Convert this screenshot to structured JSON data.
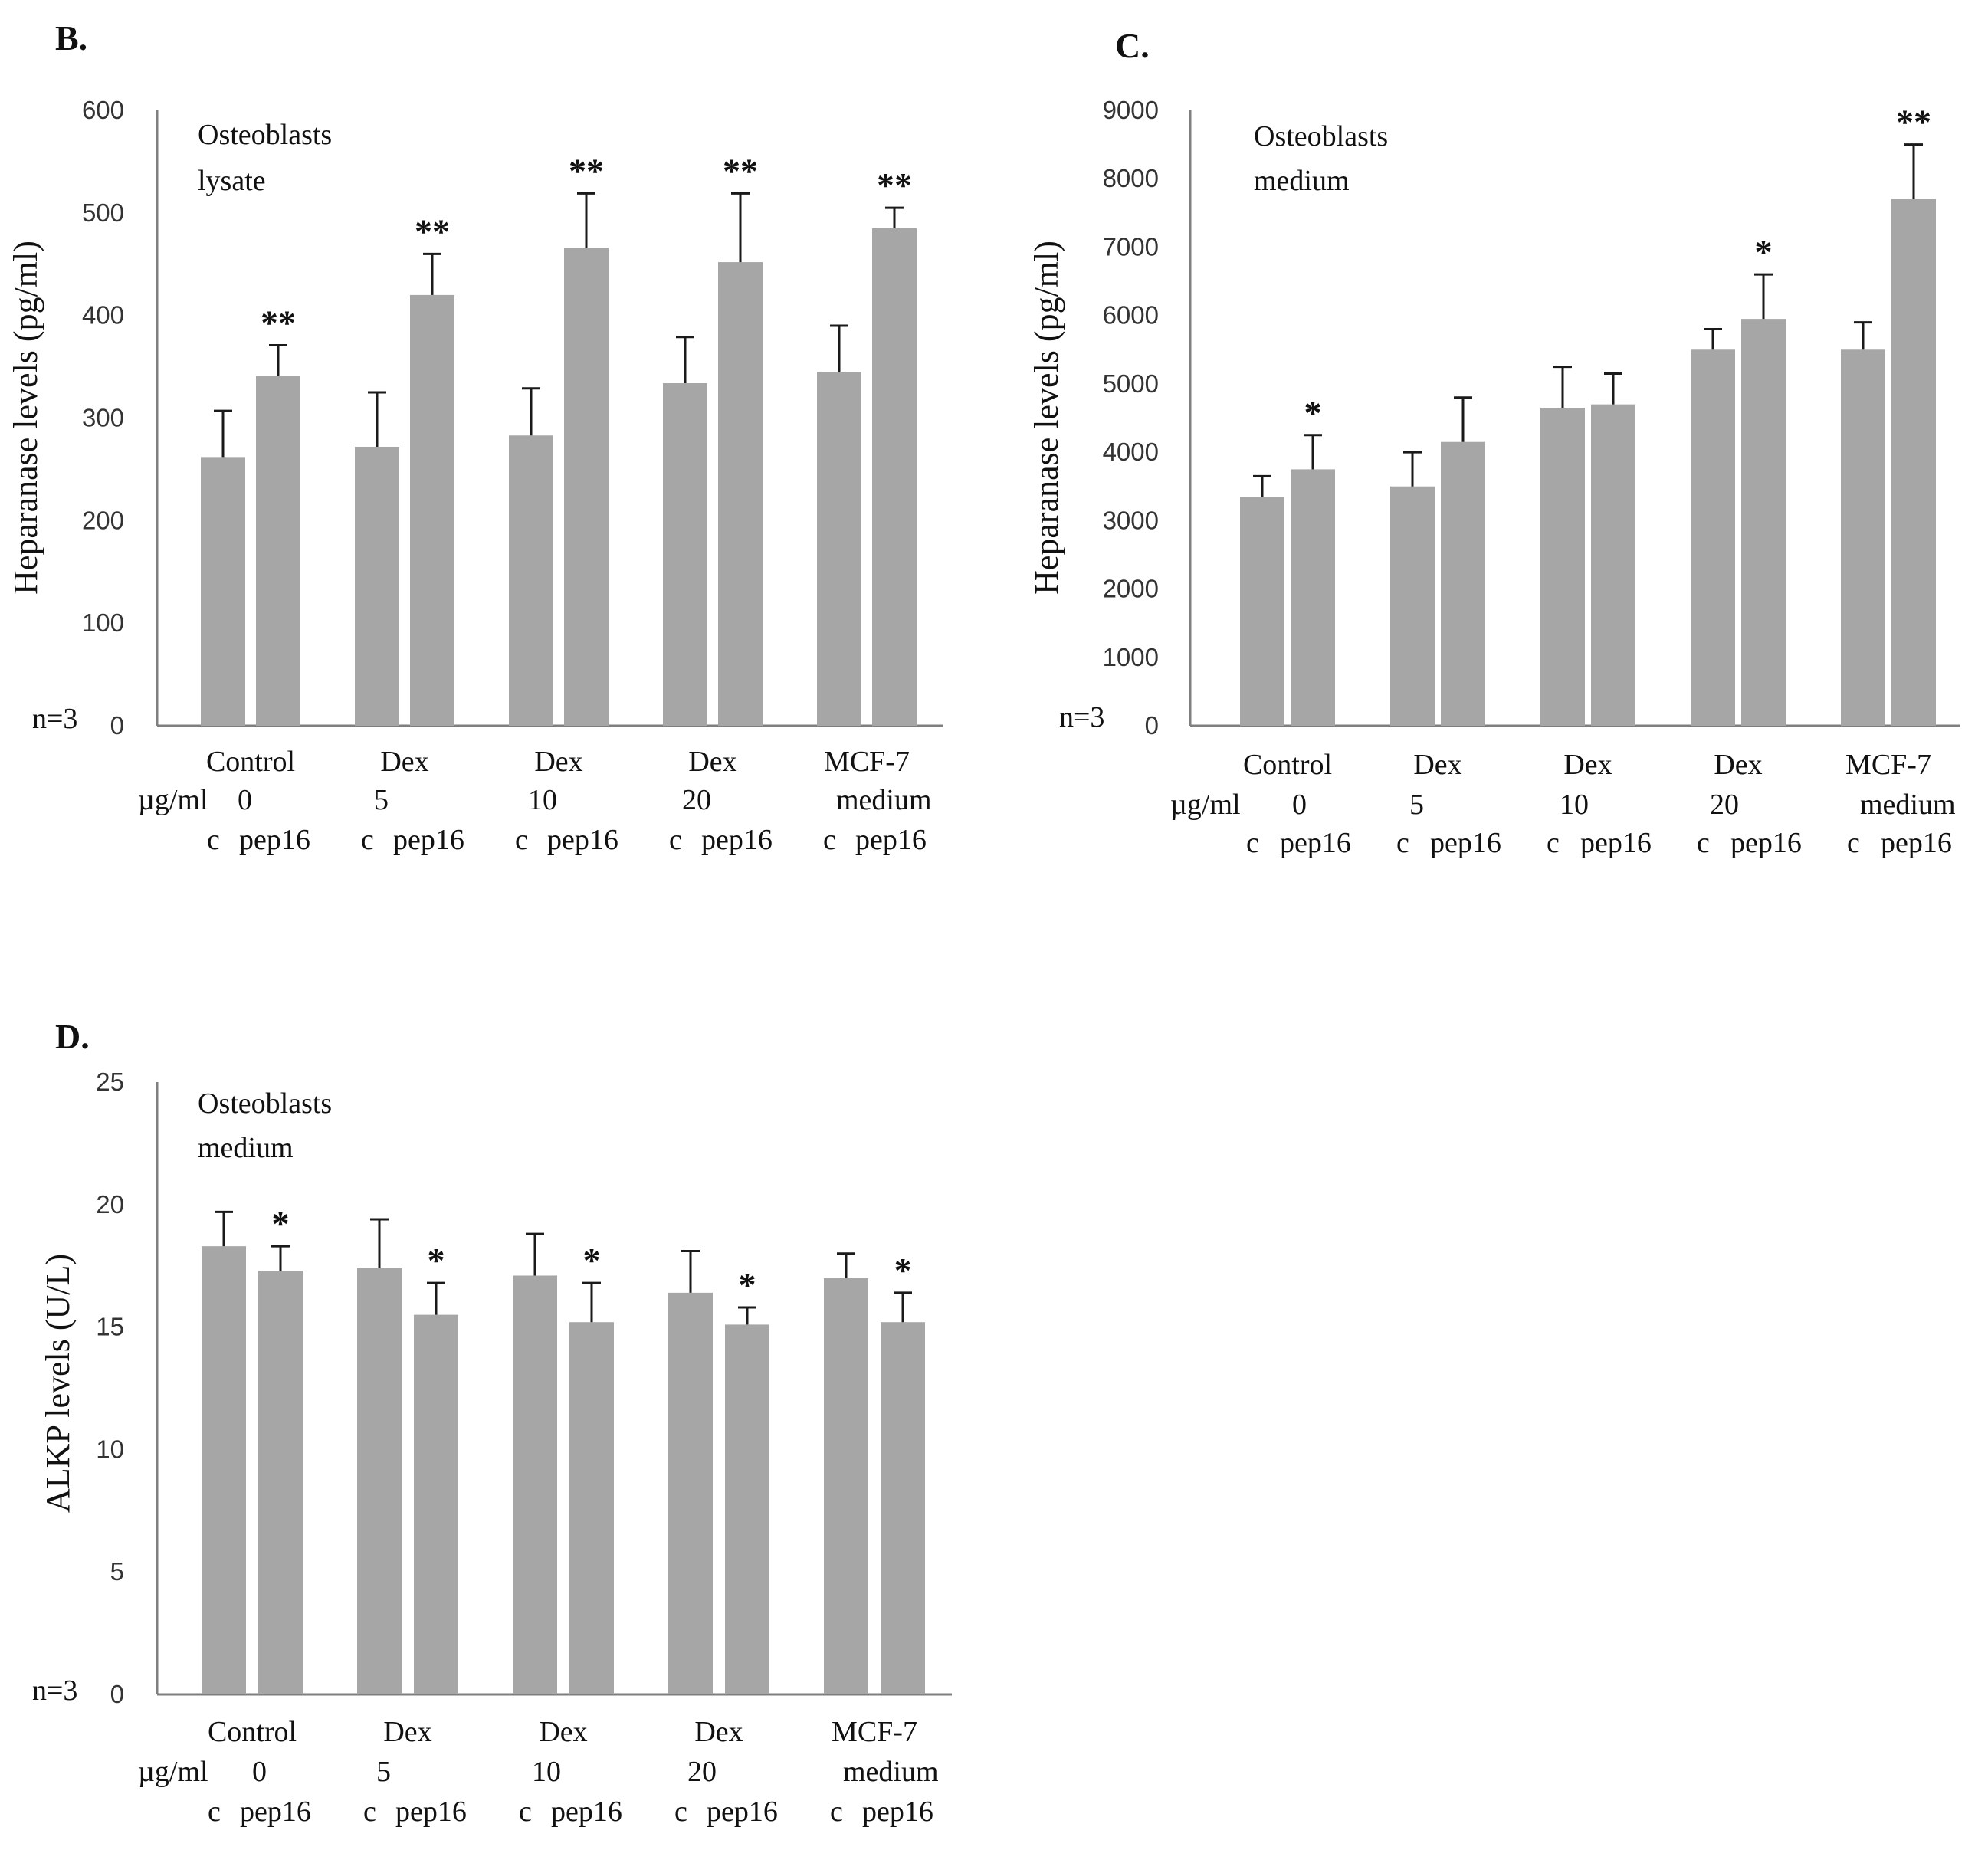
{
  "charts": [
    {
      "panel": "B.",
      "annotation": [
        "Osteoblasts",
        "lysate"
      ],
      "n_label": "n=3",
      "unit_label": "µg/ml",
      "bar_color": "#a6a6a6",
      "chart_data": {
        "type": "bar",
        "ylabel": "Heparanase levels (pg/ml)",
        "ylim": [
          0,
          600
        ],
        "yticks": [
          0,
          100,
          200,
          300,
          400,
          500,
          600
        ],
        "groups": [
          {
            "label": "Control",
            "dose": "0",
            "sub": [
              "c",
              "pep16"
            ]
          },
          {
            "label": "Dex",
            "dose": "5",
            "sub": [
              "c",
              "pep16"
            ]
          },
          {
            "label": "Dex",
            "dose": "10",
            "sub": [
              "c",
              "pep16"
            ]
          },
          {
            "label": "Dex",
            "dose": "20",
            "sub": [
              "c",
              "pep16"
            ]
          },
          {
            "label": "MCF-7",
            "dose": "medium",
            "sub": [
              "c",
              "pep16"
            ]
          }
        ],
        "series": [
          {
            "name": "c",
            "values": [
              262,
              272,
              283,
              334,
              345
            ],
            "errors": [
              45,
              53,
              46,
              45,
              45
            ],
            "sig": [
              "",
              "",
              "",
              "",
              ""
            ]
          },
          {
            "name": "pep16",
            "values": [
              341,
              420,
              466,
              452,
              485
            ],
            "errors": [
              30,
              40,
              53,
              67,
              20
            ],
            "sig": [
              "**",
              "**",
              "**",
              "**",
              "**"
            ]
          }
        ]
      }
    },
    {
      "panel": "C.",
      "annotation": [
        "Osteoblasts",
        "medium"
      ],
      "n_label": "n=3",
      "unit_label": "µg/ml",
      "bar_color": "#a6a6a6",
      "chart_data": {
        "type": "bar",
        "ylabel": "Heparanase levels (pg/ml)",
        "ylim": [
          0,
          9000
        ],
        "yticks": [
          0,
          1000,
          2000,
          3000,
          4000,
          5000,
          6000,
          7000,
          8000,
          9000
        ],
        "groups": [
          {
            "label": "Control",
            "dose": "0",
            "sub": [
              "c",
              "pep16"
            ]
          },
          {
            "label": "Dex",
            "dose": "5",
            "sub": [
              "c",
              "pep16"
            ]
          },
          {
            "label": "Dex",
            "dose": "10",
            "sub": [
              "c",
              "pep16"
            ]
          },
          {
            "label": "Dex",
            "dose": "20",
            "sub": [
              "c",
              "pep16"
            ]
          },
          {
            "label": "MCF-7",
            "dose": "medium",
            "sub": [
              "c",
              "pep16"
            ]
          }
        ],
        "series": [
          {
            "name": "c",
            "values": [
              3350,
              3500,
              4650,
              5500,
              5500
            ],
            "errors": [
              300,
              500,
              600,
              300,
              400
            ],
            "sig": [
              "",
              "",
              "",
              "",
              ""
            ]
          },
          {
            "name": "pep16",
            "values": [
              3750,
              4150,
              4700,
              5950,
              7700
            ],
            "errors": [
              500,
              650,
              450,
              650,
              800
            ],
            "sig": [
              "*",
              "",
              "",
              "*",
              "**"
            ]
          }
        ]
      }
    },
    {
      "panel": "D.",
      "annotation": [
        "Osteoblasts",
        "medium"
      ],
      "n_label": "n=3",
      "unit_label": "µg/ml",
      "bar_color": "#a6a6a6",
      "chart_data": {
        "type": "bar",
        "ylabel": "ALKP levels (U/L)",
        "ylim": [
          0,
          25
        ],
        "yticks": [
          0,
          5,
          10,
          15,
          20,
          25
        ],
        "groups": [
          {
            "label": "Control",
            "dose": "0",
            "sub": [
              "c",
              "pep16"
            ]
          },
          {
            "label": "Dex",
            "dose": "5",
            "sub": [
              "c",
              "pep16"
            ]
          },
          {
            "label": "Dex",
            "dose": "10",
            "sub": [
              "c",
              "pep16"
            ]
          },
          {
            "label": "Dex",
            "dose": "20",
            "sub": [
              "c",
              "pep16"
            ]
          },
          {
            "label": "MCF-7",
            "dose": "medium",
            "sub": [
              "c",
              "pep16"
            ]
          }
        ],
        "series": [
          {
            "name": "c",
            "values": [
              18.3,
              17.4,
              17.1,
              16.4,
              17.0
            ],
            "errors": [
              1.4,
              2.0,
              1.7,
              1.7,
              1.0
            ],
            "sig": [
              "",
              "",
              "",
              "",
              ""
            ]
          },
          {
            "name": "pep16",
            "values": [
              17.3,
              15.5,
              15.2,
              15.1,
              15.2
            ],
            "errors": [
              1.0,
              1.3,
              1.6,
              0.7,
              1.2
            ],
            "sig": [
              "*",
              "*",
              "*",
              "*",
              "*"
            ]
          }
        ]
      }
    }
  ]
}
